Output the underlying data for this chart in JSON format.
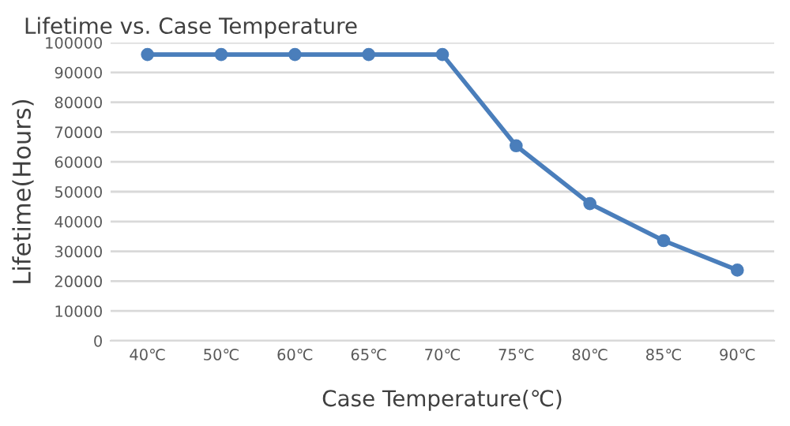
{
  "chart_data": {
    "type": "line",
    "title": "Lifetime vs. Case Temperature",
    "xlabel": "Case Temperature(℃)",
    "ylabel": "Lifetime(Hours)",
    "categories": [
      "40℃",
      "50℃",
      "60℃",
      "65℃",
      "70℃",
      "75℃",
      "80℃",
      "85℃",
      "90℃"
    ],
    "series": [
      {
        "color": "#4a7ebb",
        "values": [
          96000,
          96000,
          96000,
          96000,
          96000,
          65400,
          46000,
          33600,
          23700
        ]
      }
    ],
    "ylim": [
      0,
      100000
    ],
    "yticks": [
      0,
      10000,
      20000,
      30000,
      40000,
      50000,
      60000,
      70000,
      80000,
      90000,
      100000
    ],
    "grid": "y",
    "marker": "circle",
    "line_style": "solid"
  }
}
